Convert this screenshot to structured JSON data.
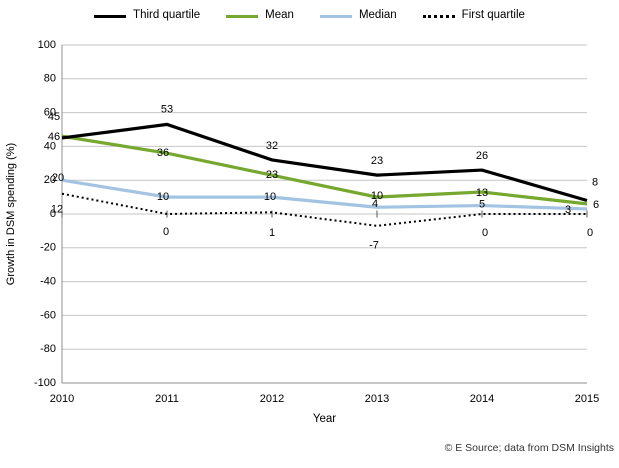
{
  "chart_data": {
    "type": "line",
    "categories": [
      "2010",
      "2011",
      "2012",
      "2013",
      "2014",
      "2015"
    ],
    "series": [
      {
        "name": "Third quartile",
        "values": [
          45,
          53,
          32,
          23,
          26,
          8
        ],
        "color": "#000000",
        "style": "solid"
      },
      {
        "name": "Mean",
        "values": [
          46,
          36,
          23,
          10,
          13,
          6
        ],
        "color": "#76A72E",
        "style": "solid"
      },
      {
        "name": "Median",
        "values": [
          20,
          10,
          10,
          4,
          5,
          3
        ],
        "color": "#A2C4E2",
        "style": "solid"
      },
      {
        "name": "First quartile",
        "values": [
          12,
          0,
          1,
          -7,
          0,
          0
        ],
        "color": "#000000",
        "style": "dotted"
      }
    ],
    "title": "",
    "xlabel": "Year",
    "ylabel": "Growth in DSM spending (%)",
    "ylim": [
      -100,
      100
    ],
    "y_ticks": [
      100,
      80,
      60,
      40,
      20,
      0,
      -20,
      -40,
      -60,
      -80,
      -100
    ],
    "legend_position": "top",
    "grid": "horizontal",
    "data_labels": true
  },
  "colors": {
    "gridline": "#c6c6c6",
    "axis": "#8f8f8f",
    "tick": "#595959",
    "background": "#ffffff"
  },
  "footer": {
    "source": "© E Source; data from DSM Insights"
  }
}
